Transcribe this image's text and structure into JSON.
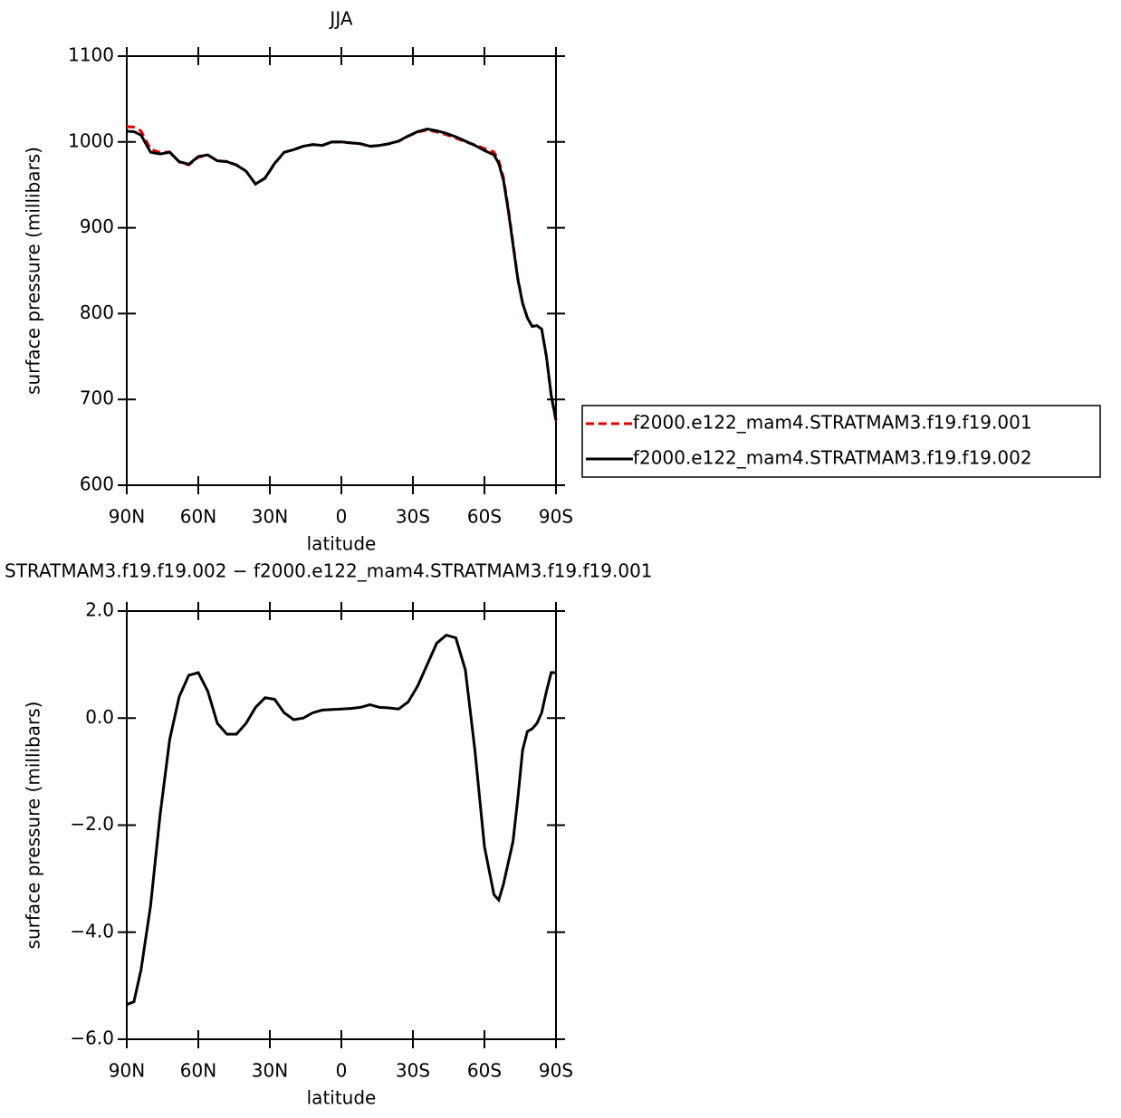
{
  "chart_data": [
    {
      "type": "line",
      "title": "JJA",
      "xlabel": "latitude",
      "ylabel": "surface pressure (millibars)",
      "x": [
        90,
        87,
        84,
        80,
        76,
        72,
        68,
        64,
        60,
        56,
        52,
        48,
        44,
        40,
        36,
        32,
        28,
        24,
        20,
        16,
        12,
        8,
        4,
        0,
        -4,
        -8,
        -12,
        -16,
        -20,
        -24,
        -28,
        -32,
        -36,
        -40,
        -44,
        -48,
        -52,
        -56,
        -60,
        -64,
        -66,
        -68,
        -70,
        -72,
        -74,
        -76,
        -78,
        -80,
        -82,
        -84,
        -86,
        -88,
        -90
      ],
      "xlim": [
        90,
        -90
      ],
      "xticks": [
        {
          "value": 90,
          "label": "90N"
        },
        {
          "value": 60,
          "label": "60N"
        },
        {
          "value": 30,
          "label": "30N"
        },
        0,
        {
          "value": -30,
          "label": "30S"
        },
        {
          "value": -60,
          "label": "60S"
        },
        {
          "value": -90,
          "label": "90S"
        }
      ],
      "ylim": [
        600,
        1100
      ],
      "yticks": [
        600,
        700,
        800,
        900,
        1000,
        1100
      ],
      "series": [
        {
          "name": "f2000.e122_mam4.STRATMAM3.f19.f19.001",
          "color": "#e00000",
          "dash": true,
          "values": [
            1017.9,
            1017.3,
            1012.7,
            991.5,
            987.8,
            988.4,
            976.6,
            973.2,
            982.2,
            984.5,
            978.1,
            977.3,
            973.3,
            966.1,
            950.8,
            957.6,
            974.7,
            987.9,
            991.0,
            995.0,
            996.9,
            995.9,
            999.8,
            999.8,
            998.8,
            997.8,
            994.8,
            995.8,
            997.8,
            1000.8,
            1006.7,
            1011.4,
            1014,
            1011.6,
            1008.5,
            1004.5,
            1000.1,
            996.6,
            992.4,
            988.3,
            978.4,
            958.1,
            922.7,
            882.3,
            841.5,
            812.6,
            795.3,
            785.2,
            786.1,
            781.9,
            749.5,
            704.2,
            675.2
          ]
        },
        {
          "name": "f2000.e122_mam4.STRATMAM3.f19.f19.002",
          "color": "#000000",
          "dash": false,
          "values": [
            1012.5,
            1012,
            1008,
            988,
            986,
            988,
            977,
            974,
            983,
            985,
            978,
            977,
            973,
            966,
            951,
            958,
            975,
            988,
            991,
            995,
            997,
            996,
            1000,
            1000,
            999,
            998,
            995,
            996,
            998,
            1001,
            1007,
            1012,
            1015,
            1013,
            1010,
            1006,
            1001,
            996,
            990,
            985,
            975,
            955,
            920,
            880,
            840,
            812,
            795,
            785,
            786,
            782,
            750,
            705,
            676
          ]
        }
      ],
      "legend": "right"
    },
    {
      "type": "line",
      "title": "STRATMAM3.f19.f19.002 − f2000.e122_mam4.STRATMAM3.f19.f19.001",
      "xlabel": "latitude",
      "ylabel": "surface pressure (millibars)",
      "x": [
        90,
        87,
        84,
        80,
        76,
        72,
        68,
        64,
        60,
        56,
        52,
        48,
        44,
        40,
        36,
        32,
        28,
        24,
        20,
        16,
        12,
        8,
        4,
        0,
        -4,
        -8,
        -12,
        -16,
        -20,
        -24,
        -28,
        -32,
        -36,
        -40,
        -44,
        -48,
        -52,
        -56,
        -60,
        -64,
        -66,
        -68,
        -70,
        -72,
        -74,
        -76,
        -78,
        -80,
        -82,
        -84,
        -86,
        -88,
        -90
      ],
      "xlim": [
        90,
        -90
      ],
      "xticks": [
        {
          "value": 90,
          "label": "90N"
        },
        {
          "value": 60,
          "label": "60N"
        },
        {
          "value": 30,
          "label": "30N"
        },
        0,
        {
          "value": -30,
          "label": "30S"
        },
        {
          "value": -60,
          "label": "60S"
        },
        {
          "value": -90,
          "label": "90S"
        }
      ],
      "ylim": [
        -6,
        2
      ],
      "yticks": [
        {
          "value": -6,
          "label": "−6.0"
        },
        {
          "value": -4,
          "label": "−4.0"
        },
        {
          "value": -2,
          "label": "−2.0"
        },
        {
          "value": 0,
          "label": "0.0"
        },
        {
          "value": 2,
          "label": "2.0"
        }
      ],
      "series": [
        {
          "color": "#000000",
          "dash": false,
          "values": [
            -5.35,
            -5.3,
            -4.7,
            -3.5,
            -1.8,
            -0.4,
            0.4,
            0.8,
            0.85,
            0.5,
            -0.1,
            -0.3,
            -0.3,
            -0.1,
            0.2,
            0.38,
            0.35,
            0.1,
            -0.03,
            0.0,
            0.1,
            0.15,
            0.16,
            0.17,
            0.18,
            0.2,
            0.25,
            0.2,
            0.19,
            0.17,
            0.3,
            0.6,
            1.0,
            1.4,
            1.55,
            1.5,
            0.9,
            -0.6,
            -2.4,
            -3.3,
            -3.4,
            -3.1,
            -2.7,
            -2.3,
            -1.5,
            -0.6,
            -0.25,
            -0.2,
            -0.1,
            0.1,
            0.5,
            0.85,
            0.85
          ]
        }
      ]
    }
  ]
}
